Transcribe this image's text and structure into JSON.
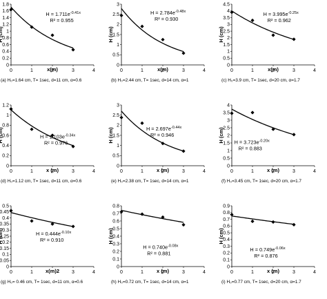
{
  "chart_data": [
    {
      "type": "scatter",
      "caption": "(a) H₀=1.64 cm, T= 1sec, d=11 cm, α=0.6",
      "xlabel": "x(m)",
      "ylabel": "H (cm)",
      "xlim": [
        0,
        4
      ],
      "ylim": [
        0,
        1.8
      ],
      "xticks": [
        "0",
        "1",
        "2",
        "3",
        "4"
      ],
      "yticks": [
        "0",
        "0.2",
        "0.4",
        "0.6",
        "0.8",
        "1",
        "1.2",
        "1.4",
        "1.6",
        "1.8"
      ],
      "points": [
        {
          "x": 0,
          "y": 1.64
        },
        {
          "x": 1,
          "y": 1.12
        },
        {
          "x": 2,
          "y": 0.88
        },
        {
          "x": 3,
          "y": 0.45
        }
      ],
      "trend": {
        "a": 1.711,
        "b": -0.41,
        "equation": "H = 1.711e",
        "exponent": "-0.41x",
        "r2": "R² = 0.955"
      }
    },
    {
      "type": "scatter",
      "caption": "(b) H₀=2.44 cm, T= 1sec, d=14 cm, α=1",
      "xlabel": "x(m)",
      "ylabel": "H (cm)",
      "xlim": [
        0,
        4
      ],
      "ylim": [
        0,
        3
      ],
      "xticks": [
        "0",
        "1",
        "2",
        "3",
        "4"
      ],
      "yticks": [
        "0",
        "0.5",
        "1",
        "1.5",
        "2",
        "2.5",
        "3"
      ],
      "points": [
        {
          "x": 0,
          "y": 2.44
        },
        {
          "x": 1,
          "y": 1.9
        },
        {
          "x": 2,
          "y": 1.25
        },
        {
          "x": 3,
          "y": 0.58
        }
      ],
      "trend": {
        "a": 2.784,
        "b": -0.48,
        "equation": "H = 2.784e",
        "exponent": "-0.48x",
        "r2": "R² = 0.930"
      }
    },
    {
      "type": "scatter",
      "caption": "(c) H₀=3.9 cm, T= 1sec, d=20 cm, α=1.7",
      "xlabel": "x(m)",
      "ylabel": "H (cm)",
      "xlim": [
        0,
        4
      ],
      "ylim": [
        0,
        4.5
      ],
      "xticks": [
        "0",
        "1",
        "2",
        "3",
        "4"
      ],
      "yticks": [
        "0",
        "0.5",
        "1",
        "1.5",
        "2",
        "2.5",
        "3",
        "3.5",
        "4",
        "4.5"
      ],
      "points": [
        {
          "x": 0,
          "y": 3.9
        },
        {
          "x": 1,
          "y": 3.3
        },
        {
          "x": 2,
          "y": 2.2
        },
        {
          "x": 3,
          "y": 1.9
        }
      ],
      "trend": {
        "a": 3.995,
        "b": -0.25,
        "equation": "H = 3.995e",
        "exponent": "-0.25x",
        "r2": "R² = 0.962"
      }
    },
    {
      "type": "scatter",
      "caption": "(d) H₀=1.12 cm, T= 1sec, d=11 cm, α=0.6",
      "xlabel": "x (m)",
      "ylabel": "H (cm)",
      "xlim": [
        0,
        4
      ],
      "ylim": [
        0,
        1.2
      ],
      "xticks": [
        "0",
        "1",
        "2",
        "3",
        "4"
      ],
      "yticks": [
        "0",
        "0.2",
        "0.4",
        "0.6",
        "0.8",
        "1",
        "1.2"
      ],
      "points": [
        {
          "x": 0,
          "y": 1.12
        },
        {
          "x": 1,
          "y": 0.72
        },
        {
          "x": 2,
          "y": 0.6
        },
        {
          "x": 3,
          "y": 0.38
        }
      ],
      "trend": {
        "a": 1.103,
        "b": -0.34,
        "equation": "H = 1.103e",
        "exponent": "-0.34x",
        "r2": "R² = 0.976"
      }
    },
    {
      "type": "scatter",
      "caption": "(e) H₀=2.38 cm, T= 1sec, d=14 cm, α=1",
      "xlabel": "x (m)",
      "ylabel": "H (cm)",
      "xlim": [
        0,
        4
      ],
      "ylim": [
        0,
        3
      ],
      "xticks": [
        "0",
        "1",
        "2",
        "3",
        "4"
      ],
      "yticks": [
        "0",
        "0.5",
        "1",
        "1.5",
        "2",
        "2.5",
        "3"
      ],
      "points": [
        {
          "x": 0,
          "y": 2.38
        },
        {
          "x": 1,
          "y": 2.1
        },
        {
          "x": 2,
          "y": 1.1
        },
        {
          "x": 3,
          "y": 0.72
        }
      ],
      "trend": {
        "a": 2.697,
        "b": -0.44,
        "equation": "H = 2.697e",
        "exponent": "-0.44x",
        "r2": "R² = 0.946"
      }
    },
    {
      "type": "scatter",
      "caption": "(f) H₀=3.45 cm, T= 1sec, d=20 cm, α=1.7",
      "xlabel": "x (m)",
      "ylabel": "H (cm)",
      "xlim": [
        0,
        4
      ],
      "ylim": [
        0,
        4
      ],
      "xticks": [
        "0",
        "1",
        "2",
        "3",
        "4"
      ],
      "yticks": [
        "0",
        "0.5",
        "1",
        "1.5",
        "2",
        "2.5",
        "3",
        "3.5",
        "4"
      ],
      "points": [
        {
          "x": 0,
          "y": 3.45
        },
        {
          "x": 1,
          "y": 3.5
        },
        {
          "x": 2,
          "y": 2.4
        },
        {
          "x": 3,
          "y": 2.05
        }
      ],
      "trend": {
        "a": 3.723,
        "b": -0.2,
        "equation": "H = 3.723e",
        "exponent": "-0.20x",
        "r2": "R² = 0.883"
      }
    },
    {
      "type": "scatter",
      "caption": "(g) H₀= 0.46 cm, T= 1sec, d=11 cm, α=0.6",
      "xlabel": "x(m)2",
      "ylabel": "H (cm)",
      "xlim": [
        0,
        4
      ],
      "ylim": [
        0,
        0.5
      ],
      "xticks": [
        "0",
        "1",
        "",
        "3",
        "4"
      ],
      "yticks": [
        "0",
        "0.05",
        "0.1",
        "0.15",
        "0.2",
        "0.25",
        "0.3",
        "0.35",
        "0.4",
        "0.45",
        "0.5"
      ],
      "points": [
        {
          "x": 0,
          "y": 0.46
        },
        {
          "x": 1,
          "y": 0.375
        },
        {
          "x": 2,
          "y": 0.35
        },
        {
          "x": 3,
          "y": 0.33
        }
      ],
      "trend": {
        "a": 0.444,
        "b": -0.1,
        "equation": "H = 0.444e",
        "exponent": "-0.10x",
        "r2": "R² = 0.910"
      }
    },
    {
      "type": "scatter",
      "caption": "(h) H₀=0.72 cm, T= 1sec, d=14 cm, α=1",
      "xlabel": "x (m)",
      "ylabel": "H (cm)",
      "xlim": [
        0,
        4
      ],
      "ylim": [
        0,
        0.8
      ],
      "xticks": [
        "0",
        "1",
        "2",
        "3",
        "4"
      ],
      "yticks": [
        "0",
        "0.1",
        "0.2",
        "0.3",
        "0.4",
        "0.5",
        "0.6",
        "0.7",
        "0.8"
      ],
      "points": [
        {
          "x": 0,
          "y": 0.72
        },
        {
          "x": 1,
          "y": 0.69
        },
        {
          "x": 2,
          "y": 0.65
        },
        {
          "x": 3,
          "y": 0.55
        }
      ],
      "trend": {
        "a": 0.74,
        "b": -0.08,
        "equation": "H = 0.740e",
        "exponent": "-0.08x",
        "r2": "R² = 0.881"
      }
    },
    {
      "type": "scatter",
      "caption": "(i) H₀=0.77 cm, T= 1sec, d=20 cm, α=1.7",
      "xlabel": "x (m)",
      "ylabel": "H (cm)",
      "xlim": [
        0,
        4
      ],
      "ylim": [
        0,
        0.9
      ],
      "xticks": [
        "0",
        "1",
        "2",
        "3",
        "4"
      ],
      "yticks": [
        "0",
        "0.1",
        "0.2",
        "0.3",
        "0.4",
        "0.5",
        "0.6",
        "0.7",
        "0.8",
        "0.9"
      ],
      "points": [
        {
          "x": 0,
          "y": 0.77
        },
        {
          "x": 1,
          "y": 0.67
        },
        {
          "x": 2,
          "y": 0.66
        },
        {
          "x": 3,
          "y": 0.62
        }
      ],
      "trend": {
        "a": 0.749,
        "b": -0.06,
        "equation": "H = 0.749e",
        "exponent": "-0.06x",
        "r2": "R² = 0.876"
      }
    }
  ]
}
